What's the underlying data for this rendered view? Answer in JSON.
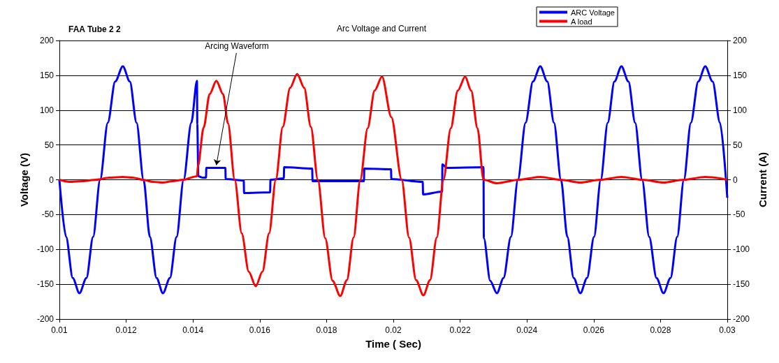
{
  "chart_data": {
    "type": "line",
    "title": "Arc Voltage and Current",
    "xlabel": "Time ( Sec)",
    "ylabel": "Voltage (V)",
    "y2label": "Current (A)",
    "annotations": [
      "FAA Tube 2 2",
      {
        "text": "Arcing Waveform",
        "x": 0.0147,
        "y": 17
      }
    ],
    "xlim": [
      0.01,
      0.03
    ],
    "xticks": [
      0.01,
      0.012,
      0.014,
      0.016,
      0.018,
      0.02,
      0.022,
      0.024,
      0.026,
      0.028,
      0.03
    ],
    "ylim": [
      -200,
      200
    ],
    "yticks": [
      -200,
      -150,
      -100,
      -50,
      0,
      50,
      100,
      150,
      200
    ],
    "y2lim": [
      -200,
      200
    ],
    "y2ticks": [
      -200,
      -150,
      -100,
      -50,
      0,
      50,
      100,
      150,
      200
    ],
    "grid": "y",
    "legend": "top right",
    "marker": "none",
    "line_style": "solid",
    "series": [
      {
        "name": "ARC Voltage",
        "color": "#0000ff",
        "x": [
          0.01,
          0.0102,
          0.0104,
          0.0106,
          0.01081,
          0.01101,
          0.01122,
          0.01145,
          0.01167,
          0.0119,
          0.01211,
          0.01231,
          0.01252,
          0.01271,
          0.01291,
          0.0131,
          0.01331,
          0.01351,
          0.01372,
          0.01395,
          0.01412,
          0.01413,
          0.01416,
          0.0143,
          0.01439,
          0.0144,
          0.01497,
          0.01498,
          0.01552,
          0.01553,
          0.01631,
          0.01632,
          0.01672,
          0.01673,
          0.01757,
          0.01758,
          0.01912,
          0.01913,
          0.01993,
          0.01994,
          0.02088,
          0.02089,
          0.02146,
          0.02147,
          0.0216,
          0.0227,
          0.02271,
          0.0229,
          0.0231,
          0.0233,
          0.02352,
          0.02373,
          0.02396,
          0.02418,
          0.0244,
          0.02461,
          0.02481,
          0.02502,
          0.02521,
          0.0254,
          0.0256,
          0.0258,
          0.02601,
          0.02621,
          0.02642,
          0.02662,
          0.02683,
          0.02704,
          0.02724,
          0.02745,
          0.02766,
          0.02788,
          0.02809,
          0.0283,
          0.0285,
          0.0287,
          0.02891,
          0.02913,
          0.02934,
          0.02956,
          0.02978,
          0.03
        ],
        "values": [
          0,
          -82,
          -141,
          -163,
          -141,
          -82,
          0,
          82,
          141,
          163,
          141,
          82,
          0,
          -82,
          -141,
          -163,
          -141,
          -82,
          0,
          82,
          142,
          80,
          5,
          3,
          3,
          17,
          17,
          1,
          -1,
          -19,
          -18,
          0,
          2,
          18,
          16,
          -2,
          -2,
          16,
          15,
          1,
          -3,
          -21,
          -17,
          22,
          17,
          18,
          -84,
          -145,
          -163,
          -141,
          -82,
          0,
          82,
          141,
          163,
          141,
          82,
          0,
          -82,
          -141,
          -163,
          -141,
          -82,
          0,
          82,
          141,
          163,
          141,
          82,
          0,
          -82,
          -141,
          -163,
          -141,
          -82,
          0,
          82,
          141,
          163,
          141,
          82,
          -26
        ]
      },
      {
        "name": "A load",
        "color": "#ff0000",
        "axis": "y2",
        "x": [
          0.01,
          0.0103,
          0.0107,
          0.0111,
          0.0115,
          0.0119,
          0.0122,
          0.0125,
          0.0128,
          0.0131,
          0.0134,
          0.0137,
          0.01412,
          0.01415,
          0.01432,
          0.0145,
          0.0147,
          0.0149,
          0.01505,
          0.01525,
          0.01546,
          0.01567,
          0.01588,
          0.01608,
          0.01628,
          0.01648,
          0.01669,
          0.01691,
          0.01712,
          0.01733,
          0.01753,
          0.01774,
          0.01796,
          0.01818,
          0.01841,
          0.01861,
          0.01881,
          0.01901,
          0.01923,
          0.01944,
          0.01966,
          0.01994,
          0.02025,
          0.02047,
          0.02068,
          0.0209,
          0.0211,
          0.0213,
          0.0215,
          0.02172,
          0.02193,
          0.02215,
          0.02233,
          0.02252,
          0.0227,
          0.0231,
          0.02375,
          0.0244,
          0.025,
          0.0256,
          0.0262,
          0.02683,
          0.02745,
          0.02809,
          0.0287,
          0.02934,
          0.03
        ],
        "values": [
          0,
          -3,
          -2,
          0,
          3,
          4,
          3,
          0,
          -3,
          -4,
          -2,
          0,
          5,
          20,
          75,
          123,
          142,
          123,
          81,
          0,
          -77,
          -132,
          -153,
          -132,
          -77,
          0,
          76,
          132,
          152,
          132,
          76,
          0,
          -84,
          -145,
          -167,
          -144,
          -83,
          0,
          74,
          128,
          148,
          90,
          0,
          -83,
          -144,
          -166,
          -144,
          -83,
          0,
          74,
          128,
          148,
          128,
          74,
          0,
          -5,
          0,
          4,
          0,
          -4,
          0,
          4,
          0,
          -4,
          0,
          4,
          0
        ]
      }
    ]
  }
}
